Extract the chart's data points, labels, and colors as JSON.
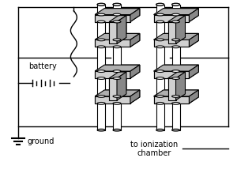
{
  "bg": "#ffffff",
  "lc": "#d0d0d0",
  "mc": "#b0b0b0",
  "dc": "#888888",
  "wc": "#000000",
  "figsize": [
    3.0,
    2.19
  ],
  "dpi": 100,
  "label_battery": "battery",
  "label_ground": "ground",
  "label_ionization": "to ionization\nchamber"
}
